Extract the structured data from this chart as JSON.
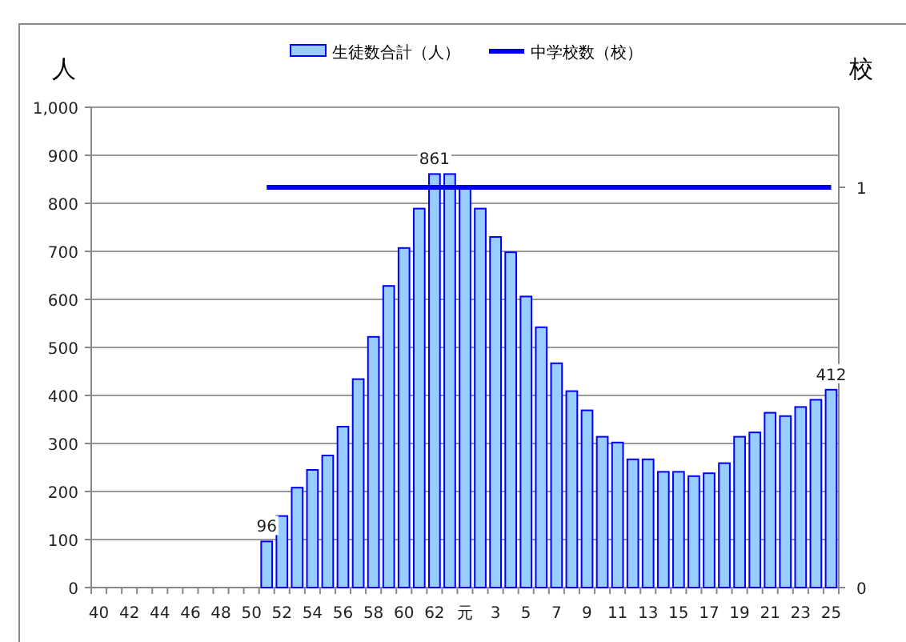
{
  "chart_data": {
    "type": "bar",
    "categories": [
      "40",
      null,
      "42",
      null,
      "44",
      null,
      "46",
      null,
      "48",
      null,
      "50",
      null,
      "52",
      null,
      "54",
      null,
      "56",
      null,
      "58",
      null,
      "60",
      null,
      "62",
      null,
      "元",
      null,
      "3",
      null,
      "5",
      null,
      "7",
      null,
      "9",
      null,
      "11",
      null,
      "13",
      null,
      "15",
      null,
      "17",
      null,
      "19",
      null,
      "21",
      null,
      "23",
      null,
      "25"
    ],
    "series": [
      {
        "name": "生徒数合計（人）",
        "color": "#99ccff",
        "values": [
          null,
          null,
          null,
          null,
          null,
          null,
          null,
          null,
          null,
          null,
          null,
          96,
          149,
          208,
          245,
          275,
          335,
          434,
          522,
          628,
          707,
          789,
          861,
          861,
          835,
          789,
          730,
          698,
          606,
          542,
          467,
          409,
          369,
          314,
          302,
          267,
          267,
          241,
          241,
          232,
          238,
          259,
          314,
          323,
          364,
          357,
          376,
          391,
          412
        ],
        "value_labels": [
          null,
          null,
          null,
          null,
          null,
          null,
          null,
          null,
          null,
          null,
          null,
          "96",
          null,
          null,
          null,
          null,
          null,
          null,
          null,
          null,
          null,
          null,
          "861",
          null,
          null,
          null,
          null,
          null,
          null,
          null,
          null,
          null,
          null,
          null,
          null,
          null,
          null,
          null,
          null,
          null,
          null,
          null,
          null,
          null,
          null,
          null,
          null,
          null,
          "412"
        ]
      },
      {
        "name": "中学校数（校）",
        "type": "line",
        "axis": "y2",
        "color": "#0000ee",
        "values": [
          null,
          null,
          null,
          null,
          null,
          null,
          null,
          null,
          null,
          null,
          null,
          1,
          1,
          1,
          1,
          1,
          1,
          1,
          1,
          1,
          1,
          1,
          1,
          1,
          1,
          1,
          1,
          1,
          1,
          1,
          1,
          1,
          1,
          1,
          1,
          1,
          1,
          1,
          1,
          1,
          1,
          1,
          1,
          1,
          1,
          1,
          1,
          1,
          1
        ]
      }
    ],
    "ylabel": "人",
    "y2label": "校",
    "ylim": [
      0,
      1000
    ],
    "yticks": [
      {
        "value": 0,
        "label": "0"
      },
      {
        "value": 100,
        "label": "100"
      },
      {
        "value": 200,
        "label": "200"
      },
      {
        "value": 300,
        "label": "300"
      },
      {
        "value": 400,
        "label": "400"
      },
      {
        "value": 500,
        "label": "500"
      },
      {
        "value": 600,
        "label": "600"
      },
      {
        "value": 700,
        "label": "700"
      },
      {
        "value": 800,
        "label": "800"
      },
      {
        "value": 900,
        "label": "900"
      },
      {
        "value": 1000,
        "label": "1,000"
      }
    ],
    "y2lim": [
      0,
      1.2
    ],
    "y2ticks": [
      0,
      1
    ],
    "grid": "y",
    "legend": "top"
  }
}
